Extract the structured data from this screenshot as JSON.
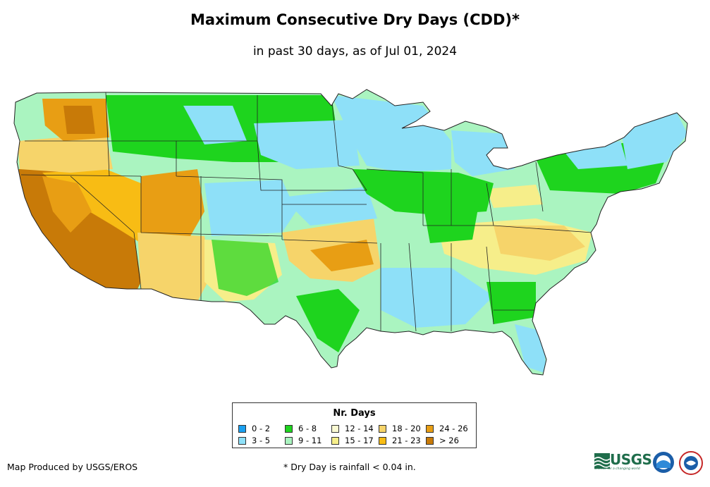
{
  "title": "Maximum Consecutive Dry Days (CDD)*",
  "subtitle": "in past 30 days, as of Jul 01, 2024",
  "legend": {
    "title": "Nr. Days",
    "items": [
      {
        "label": "0 - 2",
        "color": "#1aa0f0"
      },
      {
        "label": "3 - 5",
        "color": "#8ee0f8"
      },
      {
        "label": "6 - 8",
        "color": "#1ed41e"
      },
      {
        "label": "9 - 11",
        "color": "#aaf4c0"
      },
      {
        "label": "12 - 14",
        "color": "#fafad2"
      },
      {
        "label": "15 - 17",
        "color": "#f6ee8a"
      },
      {
        "label": "18 - 20",
        "color": "#f6d46a"
      },
      {
        "label": "21 - 23",
        "color": "#f8bc14"
      },
      {
        "label": "24 - 26",
        "color": "#e89e14"
      },
      {
        "label": "> 26",
        "color": "#c87a08"
      }
    ]
  },
  "credit": "Map Produced by USGS/EROS",
  "footnote": "* Dry Day is rainfall < 0.04 in.",
  "logos": {
    "usgs": "USGS",
    "usgs_tagline": "science for a changing world"
  }
}
